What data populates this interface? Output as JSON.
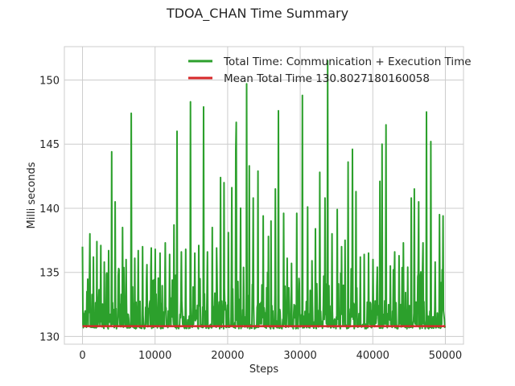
{
  "chart_data": {
    "type": "line",
    "title": "TDOA_CHAN Time Summary",
    "xlabel": "Steps",
    "ylabel": "Milli seconds",
    "xlim": [
      -2500,
      52500
    ],
    "ylim": [
      129.4,
      152.6
    ],
    "x_ticks": [
      0,
      10000,
      20000,
      30000,
      40000,
      50000
    ],
    "x_tick_labels": [
      "0",
      "10000",
      "20000",
      "30000",
      "40000",
      "50000"
    ],
    "y_ticks": [
      130,
      135,
      140,
      145,
      150
    ],
    "y_tick_labels": [
      "130",
      "135",
      "140",
      "145",
      "150"
    ],
    "grid": true,
    "legend_position": "top-right",
    "baseline_ms": 130.6,
    "series": [
      {
        "name": "Total Time: Communication + Execution Time",
        "color": "#2ca02c",
        "x_range": [
          0,
          50000
        ],
        "peaks": [
          {
            "x": 0,
            "y": 137.0
          },
          {
            "x": 600,
            "y": 133.5
          },
          {
            "x": 1000,
            "y": 138.0
          },
          {
            "x": 1500,
            "y": 136.2
          },
          {
            "x": 2000,
            "y": 137.4
          },
          {
            "x": 2500,
            "y": 137.1
          },
          {
            "x": 3000,
            "y": 135.8
          },
          {
            "x": 3600,
            "y": 136.7
          },
          {
            "x": 4000,
            "y": 144.4
          },
          {
            "x": 4500,
            "y": 140.5
          },
          {
            "x": 5000,
            "y": 135.3
          },
          {
            "x": 5500,
            "y": 138.5
          },
          {
            "x": 6000,
            "y": 136.0
          },
          {
            "x": 6700,
            "y": 147.4
          },
          {
            "x": 7200,
            "y": 136.1
          },
          {
            "x": 7700,
            "y": 136.7
          },
          {
            "x": 8300,
            "y": 137.0
          },
          {
            "x": 8900,
            "y": 135.6
          },
          {
            "x": 9500,
            "y": 136.9
          },
          {
            "x": 10000,
            "y": 136.8
          },
          {
            "x": 10700,
            "y": 136.5
          },
          {
            "x": 11400,
            "y": 137.3
          },
          {
            "x": 12000,
            "y": 136.4
          },
          {
            "x": 12600,
            "y": 138.7
          },
          {
            "x": 13000,
            "y": 146.0
          },
          {
            "x": 13600,
            "y": 136.6
          },
          {
            "x": 14200,
            "y": 136.8
          },
          {
            "x": 14900,
            "y": 148.3
          },
          {
            "x": 15500,
            "y": 136.5
          },
          {
            "x": 16000,
            "y": 137.1
          },
          {
            "x": 16700,
            "y": 147.9
          },
          {
            "x": 17200,
            "y": 136.6
          },
          {
            "x": 17900,
            "y": 138.5
          },
          {
            "x": 18500,
            "y": 136.9
          },
          {
            "x": 19000,
            "y": 142.4
          },
          {
            "x": 19500,
            "y": 142.0
          },
          {
            "x": 20100,
            "y": 138.1
          },
          {
            "x": 20600,
            "y": 141.6
          },
          {
            "x": 21100,
            "y": 144.5
          },
          {
            "x": 21200,
            "y": 146.7
          },
          {
            "x": 21800,
            "y": 140.0
          },
          {
            "x": 22600,
            "y": 149.7
          },
          {
            "x": 23000,
            "y": 143.3
          },
          {
            "x": 23500,
            "y": 140.8
          },
          {
            "x": 24200,
            "y": 142.9
          },
          {
            "x": 24900,
            "y": 139.4
          },
          {
            "x": 25600,
            "y": 137.8
          },
          {
            "x": 26000,
            "y": 139.0
          },
          {
            "x": 26600,
            "y": 141.5
          },
          {
            "x": 27000,
            "y": 147.6
          },
          {
            "x": 27700,
            "y": 139.6
          },
          {
            "x": 28200,
            "y": 136.1
          },
          {
            "x": 28800,
            "y": 135.7
          },
          {
            "x": 29500,
            "y": 139.6
          },
          {
            "x": 30300,
            "y": 148.8
          },
          {
            "x": 31000,
            "y": 140.1
          },
          {
            "x": 31600,
            "y": 135.9
          },
          {
            "x": 32100,
            "y": 138.4
          },
          {
            "x": 32700,
            "y": 142.8
          },
          {
            "x": 33400,
            "y": 140.8
          },
          {
            "x": 33800,
            "y": 151.5
          },
          {
            "x": 34400,
            "y": 138.0
          },
          {
            "x": 35100,
            "y": 139.9
          },
          {
            "x": 35700,
            "y": 137.0
          },
          {
            "x": 36200,
            "y": 137.5
          },
          {
            "x": 36600,
            "y": 143.6
          },
          {
            "x": 37200,
            "y": 144.6
          },
          {
            "x": 37700,
            "y": 141.3
          },
          {
            "x": 38300,
            "y": 136.2
          },
          {
            "x": 38800,
            "y": 136.4
          },
          {
            "x": 39400,
            "y": 136.5
          },
          {
            "x": 40000,
            "y": 136.0
          },
          {
            "x": 40600,
            "y": 135.4
          },
          {
            "x": 41000,
            "y": 142.1
          },
          {
            "x": 41300,
            "y": 145.0
          },
          {
            "x": 41800,
            "y": 146.5
          },
          {
            "x": 42400,
            "y": 135.5
          },
          {
            "x": 43000,
            "y": 136.6
          },
          {
            "x": 43600,
            "y": 136.3
          },
          {
            "x": 44200,
            "y": 137.3
          },
          {
            "x": 44800,
            "y": 135.4
          },
          {
            "x": 45300,
            "y": 140.8
          },
          {
            "x": 45700,
            "y": 141.5
          },
          {
            "x": 46300,
            "y": 140.5
          },
          {
            "x": 46900,
            "y": 137.3
          },
          {
            "x": 47400,
            "y": 147.5
          },
          {
            "x": 48000,
            "y": 145.2
          },
          {
            "x": 48600,
            "y": 135.8
          },
          {
            "x": 49200,
            "y": 139.5
          },
          {
            "x": 49700,
            "y": 139.4
          }
        ]
      },
      {
        "name": "Mean Total Time 130.8027180160058",
        "color": "#d62728",
        "x": [
          0,
          50000
        ],
        "y": [
          130.8027180160058,
          130.8027180160058
        ]
      }
    ]
  }
}
